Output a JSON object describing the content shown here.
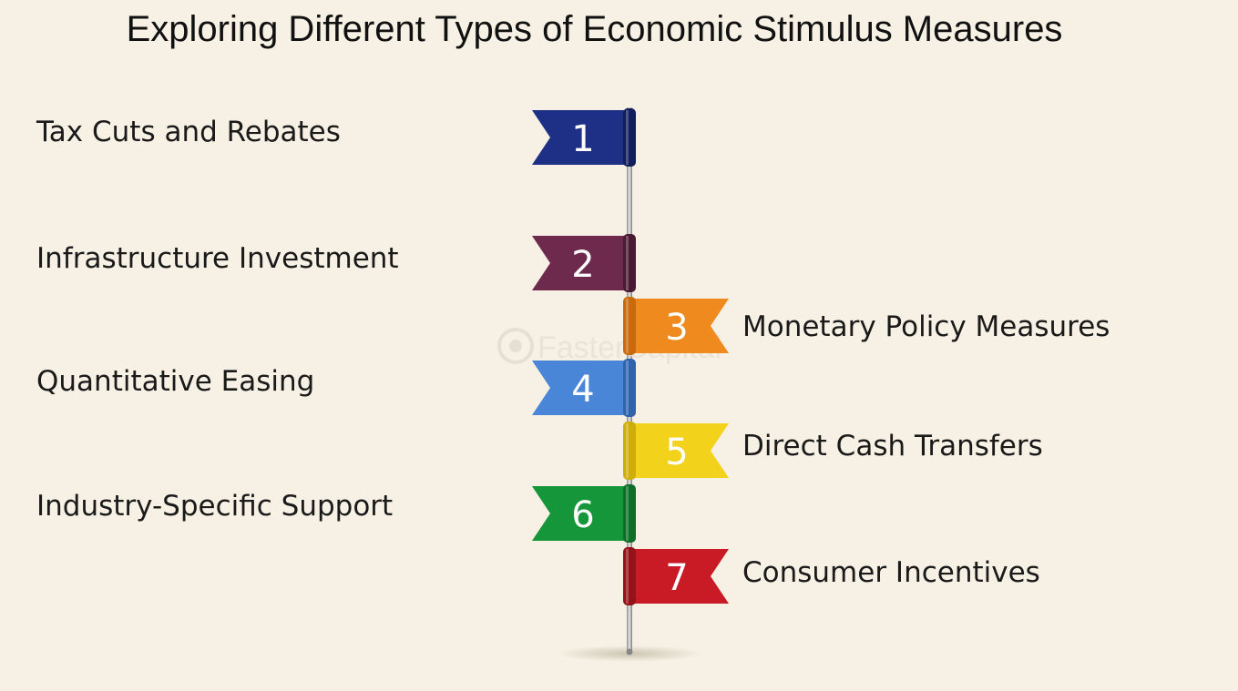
{
  "title": "Exploring Different Types of Economic Stimulus Measures",
  "watermark": "FasterCapital",
  "items": [
    {
      "number": "1",
      "label": "Tax Cuts and Rebates",
      "side": "left",
      "color": "#1e2f86",
      "dark": "#121d5c"
    },
    {
      "number": "2",
      "label": "Infrastructure Investment",
      "side": "left",
      "color": "#6e2a4c",
      "dark": "#4a1a33"
    },
    {
      "number": "3",
      "label": "Monetary Policy Measures",
      "side": "right",
      "color": "#ef8a1f",
      "dark": "#c96a0c"
    },
    {
      "number": "4",
      "label": "Quantitative Easing",
      "side": "left",
      "color": "#4a86d8",
      "dark": "#2f63ad"
    },
    {
      "number": "5",
      "label": "Direct Cash Transfers",
      "side": "right",
      "color": "#f2d21a",
      "dark": "#d0ae0a"
    },
    {
      "number": "6",
      "label": "Industry-Specific Support",
      "side": "left",
      "color": "#16963a",
      "dark": "#0d6e27"
    },
    {
      "number": "7",
      "label": "Consumer Incentives",
      "side": "right",
      "color": "#c81b26",
      "dark": "#961219"
    }
  ]
}
